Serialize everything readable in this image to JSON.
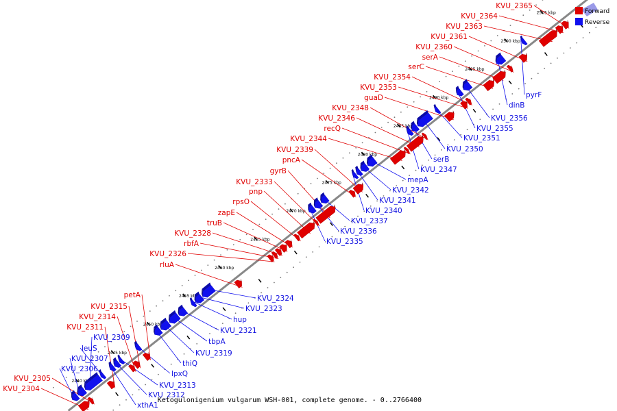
{
  "title": "Ketogulonigenium vulgarum WSH-001, complete genome. - 0..2766400",
  "legend": [
    {
      "label": "Forward",
      "color": "#e00000"
    },
    {
      "label": "Reverse",
      "color": "#1010ee"
    }
  ],
  "colors": {
    "forward": "#e00000",
    "reverse": "#1010ee",
    "backbone": "#888888"
  },
  "axis": {
    "unit": "kbp",
    "ticks": [
      {
        "kbp": 2440,
        "label": "2440 kbp"
      },
      {
        "kbp": 2445,
        "label": "2445 kbp"
      },
      {
        "kbp": 2450,
        "label": "2450 kbp"
      },
      {
        "kbp": 2455,
        "label": "2455 kbp"
      },
      {
        "kbp": 2460,
        "label": "2460 kbp"
      },
      {
        "kbp": 2465,
        "label": "2465 kbp"
      },
      {
        "kbp": 2470,
        "label": "2470 kbp"
      },
      {
        "kbp": 2475,
        "label": "2475 kbp"
      },
      {
        "kbp": 2480,
        "label": "2480 kbp"
      },
      {
        "kbp": 2485,
        "label": "2485 kbp"
      },
      {
        "kbp": 2490,
        "label": "2490 kbp"
      },
      {
        "kbp": 2495,
        "label": "2495 kbp"
      },
      {
        "kbp": 2500,
        "label": "2500 kbp"
      },
      {
        "kbp": 2505,
        "label": "2505 kbp"
      }
    ]
  },
  "genes": [
    {
      "name": "KVU_2304",
      "strand": "forward",
      "start": 2438.4,
      "end": 2439.6
    },
    {
      "name": "KVU_2305",
      "strand": "forward",
      "start": 2439.7,
      "end": 2440.1
    },
    {
      "name": "KVU_2306",
      "strand": "reverse",
      "start": 2438.3,
      "end": 2439.0
    },
    {
      "name": "KVU_2307",
      "strand": "reverse",
      "start": 2439.1,
      "end": 2440.0
    },
    {
      "name": "KVU_2309",
      "strand": "reverse",
      "start": 2440.1,
      "end": 2442.2
    },
    {
      "name": "leuS",
      "strand": "reverse",
      "start": 2442.3,
      "end": 2442.7
    },
    {
      "name": "KVU_2311",
      "strand": "forward",
      "start": 2442.4,
      "end": 2443.1
    },
    {
      "name": "xthA1",
      "strand": "reverse",
      "start": 2443.6,
      "end": 2444.1
    },
    {
      "name": "KVU_2312",
      "strand": "reverse",
      "start": 2444.2,
      "end": 2444.8
    },
    {
      "name": "KVU_2313",
      "strand": "reverse",
      "start": 2444.9,
      "end": 2445.3
    },
    {
      "name": "KVU_2314",
      "strand": "forward",
      "start": 2445.4,
      "end": 2445.9
    },
    {
      "name": "KVU_2315",
      "strand": "forward",
      "start": 2446.0,
      "end": 2446.6
    },
    {
      "name": "lpxQ",
      "strand": "reverse",
      "start": 2447.2,
      "end": 2447.7
    },
    {
      "name": "petA",
      "strand": "forward",
      "start": 2447.4,
      "end": 2448.0
    },
    {
      "name": "thiQ",
      "strand": "reverse",
      "start": 2449.8,
      "end": 2450.6
    },
    {
      "name": "KVU_2319",
      "strand": "reverse",
      "start": 2450.7,
      "end": 2451.8
    },
    {
      "name": "tbpA",
      "strand": "reverse",
      "start": 2451.9,
      "end": 2453.1
    },
    {
      "name": "KVU_2321",
      "strand": "reverse",
      "start": 2453.2,
      "end": 2454.1
    },
    {
      "name": "hup",
      "strand": "reverse",
      "start": 2455.0,
      "end": 2455.4
    },
    {
      "name": "KVU_2323",
      "strand": "reverse",
      "start": 2455.5,
      "end": 2456.4
    },
    {
      "name": "KVU_2324",
      "strand": "reverse",
      "start": 2456.5,
      "end": 2458.0
    },
    {
      "name": "rluA",
      "strand": "forward",
      "start": 2460.2,
      "end": 2460.9
    },
    {
      "name": "KVU_2326",
      "strand": "forward",
      "start": 2464.8,
      "end": 2465.3
    },
    {
      "name": "rbfA",
      "strand": "forward",
      "start": 2465.4,
      "end": 2465.8
    },
    {
      "name": "KVU_2328",
      "strand": "forward",
      "start": 2465.9,
      "end": 2466.4
    },
    {
      "name": "truB",
      "strand": "forward",
      "start": 2466.5,
      "end": 2467.2
    },
    {
      "name": "zapE",
      "strand": "forward",
      "start": 2467.3,
      "end": 2467.9
    },
    {
      "name": "rpsO",
      "strand": "forward",
      "start": 2468.5,
      "end": 2468.9
    },
    {
      "name": "pnp",
      "strand": "forward",
      "start": 2469.0,
      "end": 2471.1
    },
    {
      "name": "KVU_2333",
      "strand": "forward",
      "start": 2471.2,
      "end": 2471.5
    },
    {
      "name": "gyrB",
      "strand": "forward",
      "start": 2471.6,
      "end": 2474.0
    },
    {
      "name": "KVU_2335",
      "strand": "reverse",
      "start": 2471.4,
      "end": 2472.1
    },
    {
      "name": "KVU_2336",
      "strand": "reverse",
      "start": 2472.2,
      "end": 2473.0
    },
    {
      "name": "KVU_2337",
      "strand": "reverse",
      "start": 2473.1,
      "end": 2473.9
    },
    {
      "name": "pncA",
      "strand": "forward",
      "start": 2476.2,
      "end": 2476.7
    },
    {
      "name": "KVU_2339",
      "strand": "forward",
      "start": 2476.8,
      "end": 2477.9
    },
    {
      "name": "KVU_2340",
      "strand": "reverse",
      "start": 2477.6,
      "end": 2478.0
    },
    {
      "name": "KVU_2341",
      "strand": "reverse",
      "start": 2478.1,
      "end": 2478.6
    },
    {
      "name": "KVU_2342",
      "strand": "reverse",
      "start": 2478.7,
      "end": 2479.5
    },
    {
      "name": "mepA",
      "strand": "reverse",
      "start": 2479.6,
      "end": 2480.6
    },
    {
      "name": "KVU_2344",
      "strand": "forward",
      "start": 2482.0,
      "end": 2483.8
    },
    {
      "name": "recQ",
      "strand": "forward",
      "start": 2483.9,
      "end": 2484.2
    },
    {
      "name": "KVU_2346",
      "strand": "forward",
      "start": 2484.3,
      "end": 2486.3
    },
    {
      "name": "KVU_2347",
      "strand": "reverse",
      "start": 2485.2,
      "end": 2485.7
    },
    {
      "name": "serB",
      "strand": "reverse",
      "start": 2485.8,
      "end": 2486.5
    },
    {
      "name": "KVU_2348",
      "strand": "forward",
      "start": 2486.4,
      "end": 2486.7
    },
    {
      "name": "KVU_2350",
      "strand": "reverse",
      "start": 2486.6,
      "end": 2488.4
    },
    {
      "name": "KVU_2351",
      "strand": "reverse",
      "start": 2489.1,
      "end": 2489.5
    },
    {
      "name": "guaD",
      "strand": "forward",
      "start": 2489.6,
      "end": 2490.6
    },
    {
      "name": "KVU_2353",
      "strand": "forward",
      "start": 2491.8,
      "end": 2492.4
    },
    {
      "name": "KVU_2354",
      "strand": "forward",
      "start": 2492.5,
      "end": 2492.9
    },
    {
      "name": "KVU_2355",
      "strand": "reverse",
      "start": 2492.1,
      "end": 2492.7
    },
    {
      "name": "KVU_2356",
      "strand": "reverse",
      "start": 2493.0,
      "end": 2493.9
    },
    {
      "name": "serC",
      "strand": "forward",
      "start": 2495.0,
      "end": 2496.2
    },
    {
      "name": "serA",
      "strand": "forward",
      "start": 2496.3,
      "end": 2497.8
    },
    {
      "name": "dinB",
      "strand": "reverse",
      "start": 2497.6,
      "end": 2498.6
    },
    {
      "name": "KVU_2360",
      "strand": "forward",
      "start": 2498.3,
      "end": 2498.7
    },
    {
      "name": "KVU_2361",
      "strand": "forward",
      "start": 2500.0,
      "end": 2500.8
    },
    {
      "name": "pyrF",
      "strand": "reverse",
      "start": 2501.2,
      "end": 2501.6
    },
    {
      "name": "KVU_2363",
      "strand": "forward",
      "start": 2502.8,
      "end": 2505.0
    },
    {
      "name": "KVU_2364",
      "strand": "forward",
      "start": 2505.1,
      "end": 2505.8
    },
    {
      "name": "KVU_2365",
      "strand": "forward",
      "start": 2505.9,
      "end": 2506.6
    }
  ]
}
